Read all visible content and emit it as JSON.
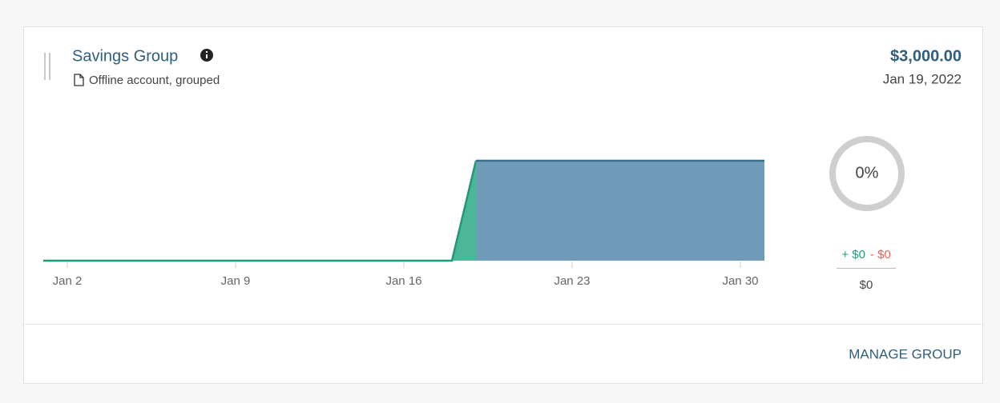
{
  "card": {
    "title": "Savings Group",
    "subtitle": "Offline account, grouped",
    "balance": "$3,000.00",
    "date": "Jan 19, 2022",
    "donut_label": "0%",
    "gain": "+ $0",
    "loss": "- $0",
    "net": "$0",
    "action": "MANAGE GROUP"
  },
  "chart_data": {
    "type": "area",
    "xlim": [
      1,
      31
    ],
    "ylim": [
      0,
      4500
    ],
    "xticks": [
      {
        "value": 2,
        "label": "Jan 2"
      },
      {
        "value": 9,
        "label": "Jan 9"
      },
      {
        "value": 16,
        "label": "Jan 16"
      },
      {
        "value": 23,
        "label": "Jan 23"
      },
      {
        "value": 30,
        "label": "Jan 30"
      }
    ],
    "series": [
      {
        "color": "#159e78",
        "fill": "#4cb698",
        "x": [
          1,
          18,
          19
        ],
        "values": [
          0,
          0,
          3000
        ]
      },
      {
        "color": "#3b6f8e",
        "fill": "#6f9bb8",
        "x": [
          19,
          31
        ],
        "values": [
          3000,
          3000
        ]
      }
    ]
  }
}
